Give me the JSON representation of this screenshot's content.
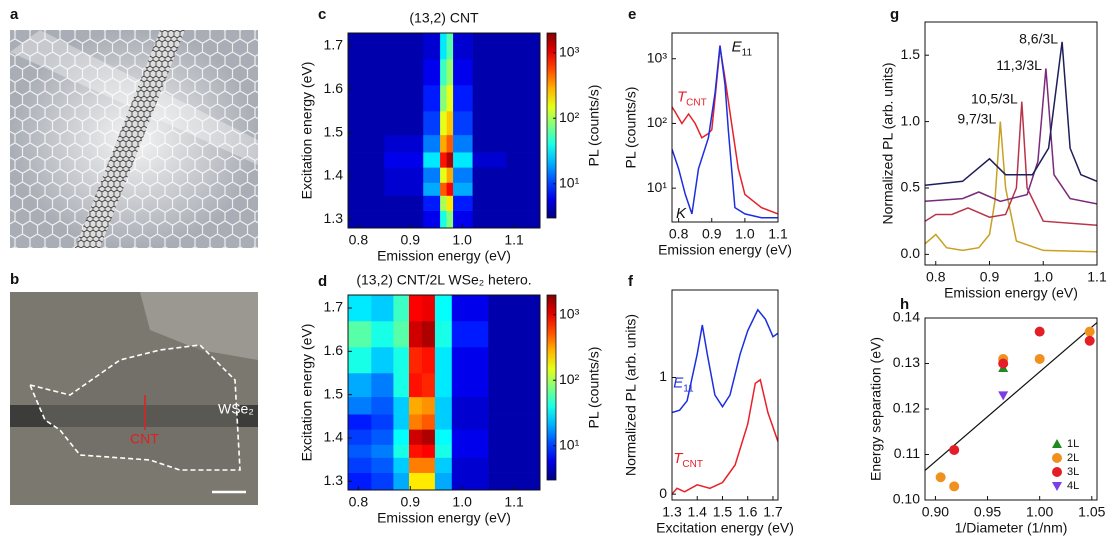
{
  "figure": {
    "panel_letters": [
      "a",
      "b",
      "c",
      "d",
      "e",
      "f",
      "g",
      "h"
    ],
    "b_labels": [
      "WSe₂",
      "CNT"
    ]
  },
  "chart_data": [
    {
      "type": "heatmap",
      "title": "(13,2) CNT",
      "x_label": "Emission energy (eV)",
      "y_label": "Excitation energy (eV)",
      "colorbar_label": "PL (counts/s)",
      "xlim": [
        0.78,
        1.15
      ],
      "ylim": [
        1.28,
        1.73
      ],
      "xticks": [
        0.8,
        0.9,
        {
          "value": 1,
          "label": "1.0"
        },
        1.1
      ],
      "yticks": [
        1.3,
        1.4,
        1.5,
        1.6,
        1.7
      ],
      "zlim": [
        3,
        2000
      ],
      "zlog": true,
      "zticks": [
        {
          "value": 10,
          "label": "10¹"
        },
        {
          "value": 100,
          "label": "10²"
        },
        {
          "value": 1000,
          "label": "10³"
        }
      ],
      "x": [
        0.8,
        0.9,
        0.95,
        0.965,
        0.975,
        0.99,
        1.05,
        1.12
      ],
      "y": [
        1.3,
        1.34,
        1.37,
        1.4,
        1.44,
        1.47,
        1.52,
        1.58,
        1.64,
        1.7
      ],
      "z": [
        [
          4,
          4,
          6,
          40,
          80,
          6,
          4,
          4
        ],
        [
          4,
          4,
          8,
          100,
          200,
          8,
          4,
          4
        ],
        [
          4,
          5,
          20,
          500,
          900,
          20,
          4,
          4
        ],
        [
          4,
          5,
          15,
          150,
          300,
          15,
          4,
          4
        ],
        [
          4,
          6,
          30,
          800,
          1500,
          30,
          5,
          4
        ],
        [
          4,
          5,
          15,
          300,
          500,
          15,
          4,
          4
        ],
        [
          4,
          4,
          10,
          150,
          250,
          10,
          4,
          4
        ],
        [
          4,
          4,
          8,
          80,
          150,
          8,
          4,
          4
        ],
        [
          4,
          4,
          6,
          50,
          90,
          6,
          4,
          4
        ],
        [
          4,
          4,
          5,
          30,
          60,
          5,
          4,
          4
        ]
      ]
    },
    {
      "type": "heatmap",
      "title": "(13,2) CNT/2L WSe₂ hetero.",
      "x_label": "Emission energy (eV)",
      "y_label": "Excitation energy (eV)",
      "colorbar_label": "PL (counts/s)",
      "xlim": [
        0.78,
        1.15
      ],
      "ylim": [
        1.28,
        1.73
      ],
      "xticks": [
        0.8,
        0.9,
        {
          "value": 1,
          "label": "1.0"
        },
        1.1
      ],
      "yticks": [
        1.3,
        1.4,
        1.5,
        1.6,
        1.7
      ],
      "zlim": [
        3,
        2000
      ],
      "zlog": true,
      "zticks": [
        {
          "value": 10,
          "label": "10¹"
        },
        {
          "value": 100,
          "label": "10²"
        },
        {
          "value": 1000,
          "label": "10³"
        }
      ],
      "x": [
        0.8,
        0.85,
        0.885,
        0.91,
        0.935,
        0.96,
        1.0,
        1.1
      ],
      "y": [
        1.3,
        1.34,
        1.37,
        1.4,
        1.44,
        1.47,
        1.52,
        1.58,
        1.64,
        1.7
      ],
      "z": [
        [
          8,
          10,
          20,
          200,
          200,
          20,
          5,
          4
        ],
        [
          10,
          12,
          25,
          400,
          400,
          25,
          5,
          4
        ],
        [
          12,
          15,
          40,
          800,
          900,
          40,
          6,
          4
        ],
        [
          10,
          12,
          35,
          1200,
          1500,
          35,
          6,
          4
        ],
        [
          8,
          10,
          25,
          400,
          500,
          25,
          5,
          4
        ],
        [
          15,
          12,
          25,
          300,
          350,
          25,
          5,
          4
        ],
        [
          20,
          15,
          40,
          800,
          700,
          30,
          6,
          4
        ],
        [
          40,
          25,
          40,
          700,
          800,
          30,
          6,
          4
        ],
        [
          60,
          40,
          60,
          1200,
          1500,
          40,
          8,
          4
        ],
        [
          30,
          25,
          50,
          900,
          1000,
          35,
          6,
          4
        ]
      ]
    },
    {
      "type": "line",
      "x_label": "Emission energy (eV)",
      "y_label": "PL (counts/s)",
      "ylog": true,
      "xlim": [
        0.78,
        1.1
      ],
      "ylim": [
        3,
        2500
      ],
      "xticks": [
        0.8,
        0.9,
        {
          "value": 1,
          "label": "1.0"
        },
        1.1
      ],
      "yticks": [
        {
          "value": 10,
          "label": "10¹"
        },
        {
          "value": 100,
          "label": "10²"
        },
        {
          "value": 1000,
          "label": "10³"
        }
      ],
      "series": [
        {
          "color": "#e8202a",
          "x": [
            0.78,
            0.79,
            0.81,
            0.83,
            0.85,
            0.87,
            0.89,
            0.9,
            0.91,
            0.925,
            0.94,
            0.96,
            0.98,
            1.0,
            1.05,
            1.1
          ],
          "values": [
            180,
            150,
            100,
            140,
            100,
            60,
            70,
            80,
            250,
            1500,
            500,
            100,
            20,
            8,
            5,
            4
          ]
        },
        {
          "color": "#1c2ee0",
          "x": [
            0.78,
            0.8,
            0.82,
            0.84,
            0.86,
            0.89,
            0.91,
            0.925,
            0.94,
            0.95,
            0.97,
            1.0,
            1.05,
            1.1
          ],
          "values": [
            40,
            20,
            8,
            4,
            20,
            60,
            300,
            1600,
            400,
            80,
            5,
            4,
            3.5,
            3.5
          ]
        }
      ],
      "annotations": [
        {
          "text": "T",
          "sub": "CNT",
          "x": 0.795,
          "y": 250,
          "color": "#e8202a"
        },
        {
          "text": "E",
          "sub": "11",
          "x": 0.96,
          "y": 1500,
          "color": "#111"
        },
        {
          "text": "K",
          "x": 0.792,
          "y": 4,
          "color": "#111"
        }
      ]
    },
    {
      "type": "line",
      "x_label": "Excitation energy (eV)",
      "y_label": "Normalized PL (arb. units)",
      "xlim": [
        1.3,
        1.72
      ],
      "ylim": [
        -0.05,
        1.75
      ],
      "xticks": [
        1.3,
        1.4,
        1.5,
        1.6,
        1.7
      ],
      "yticks": [
        0,
        1
      ],
      "series": [
        {
          "color": "#1c2ee0",
          "x": [
            1.3,
            1.33,
            1.36,
            1.4,
            1.42,
            1.44,
            1.47,
            1.5,
            1.53,
            1.57,
            1.6,
            1.64,
            1.67,
            1.7,
            1.72
          ],
          "values": [
            0.7,
            0.72,
            0.8,
            1.2,
            1.45,
            1.2,
            0.85,
            0.75,
            0.85,
            1.2,
            1.4,
            1.58,
            1.5,
            1.35,
            1.38
          ]
        },
        {
          "color": "#e8202a",
          "x": [
            1.3,
            1.32,
            1.35,
            1.4,
            1.45,
            1.5,
            1.55,
            1.6,
            1.63,
            1.65,
            1.68,
            1.72
          ],
          "values": [
            0,
            0.05,
            0.02,
            0.08,
            0.05,
            0.1,
            0.25,
            0.6,
            0.95,
            0.98,
            0.7,
            0.45
          ]
        }
      ],
      "annotations": [
        {
          "text": "E",
          "sub": "11",
          "x": 1.305,
          "y": 0.95,
          "color": "#1c2ee0"
        },
        {
          "text": "T",
          "sub": "CNT",
          "x": 1.305,
          "y": 0.3,
          "color": "#e8202a"
        }
      ]
    },
    {
      "type": "line",
      "x_label": "Emission energy (eV)",
      "y_label": "Normalized PL (arb. units)",
      "series_labels": true,
      "xlim": [
        0.78,
        1.1
      ],
      "ylim": [
        -0.08,
        1.75
      ],
      "xticks": [
        0.8,
        0.9,
        {
          "value": 1,
          "label": "1.0"
        },
        1.1
      ],
      "yticks": [
        {
          "value": 0,
          "label": "0.0"
        },
        0.5,
        {
          "value": 1,
          "label": "1.0"
        },
        1.5
      ],
      "series": [
        {
          "name": "9,7/3L",
          "color": "#c9a021",
          "x": [
            0.78,
            0.8,
            0.82,
            0.85,
            0.88,
            0.9,
            0.91,
            0.92,
            0.93,
            0.95,
            1.0,
            1.1
          ],
          "values": [
            0.08,
            0.15,
            0.05,
            0.03,
            0.05,
            0.15,
            0.4,
            1.0,
            0.5,
            0.1,
            0.03,
            0.02
          ]
        },
        {
          "name": "10,5/3L",
          "color": "#b8344a",
          "x": [
            0.78,
            0.8,
            0.83,
            0.86,
            0.9,
            0.93,
            0.95,
            0.96,
            0.97,
            1.0,
            1.1
          ],
          "values": [
            0.25,
            0.3,
            0.3,
            0.35,
            0.28,
            0.3,
            0.5,
            1.15,
            0.5,
            0.25,
            0.22
          ]
        },
        {
          "name": "11,3/3L",
          "color": "#7b2a7b",
          "x": [
            0.78,
            0.85,
            0.88,
            0.92,
            0.97,
            0.99,
            1.005,
            1.02,
            1.05,
            1.1
          ],
          "values": [
            0.4,
            0.42,
            0.47,
            0.4,
            0.45,
            0.7,
            1.4,
            0.6,
            0.42,
            0.38
          ]
        },
        {
          "name": "8,6/3L",
          "color": "#1e1e5a",
          "x": [
            0.78,
            0.85,
            0.9,
            0.93,
            0.98,
            1.01,
            1.035,
            1.05,
            1.07,
            1.1
          ],
          "values": [
            0.52,
            0.55,
            0.72,
            0.6,
            0.6,
            0.8,
            1.6,
            0.8,
            0.6,
            0.55
          ]
        }
      ]
    },
    {
      "type": "scatter",
      "x_label": "1/Diameter (1/nm)",
      "y_label": "Energy separation (eV)",
      "legend": "lower right",
      "xlim": [
        0.89,
        1.055
      ],
      "ylim": [
        0.1,
        0.14
      ],
      "xticks": [
        {
          "value": 0.9,
          "label": "0.90"
        },
        0.95,
        {
          "value": 1,
          "label": "1.00"
        },
        1.05
      ],
      "yticks": [
        {
          "value": 0.1,
          "label": "0.10"
        },
        0.11,
        0.12,
        0.13,
        0.14
      ],
      "fit": {
        "color": "#111",
        "x": [
          0.89,
          1.055
        ],
        "values": [
          0.1065,
          0.139
        ]
      },
      "series": [
        {
          "name": "1L",
          "color": "#1f8a1f",
          "marker": "triangle",
          "x": [
            0.965
          ],
          "values": [
            0.129
          ]
        },
        {
          "name": "2L",
          "color": "#f0901e",
          "marker": "circle",
          "x": [
            0.905,
            0.918,
            0.965,
            1.0,
            1.048
          ],
          "values": [
            0.105,
            0.103,
            0.131,
            0.131,
            0.137
          ]
        },
        {
          "name": "3L",
          "color": "#e41e26",
          "marker": "circle",
          "x": [
            0.918,
            0.965,
            1.0,
            1.048
          ],
          "values": [
            0.111,
            0.13,
            0.137,
            0.135
          ]
        },
        {
          "name": "4L",
          "color": "#7b3fe4",
          "marker": "triangle-down",
          "x": [
            0.965
          ],
          "values": [
            0.123
          ]
        }
      ]
    }
  ]
}
